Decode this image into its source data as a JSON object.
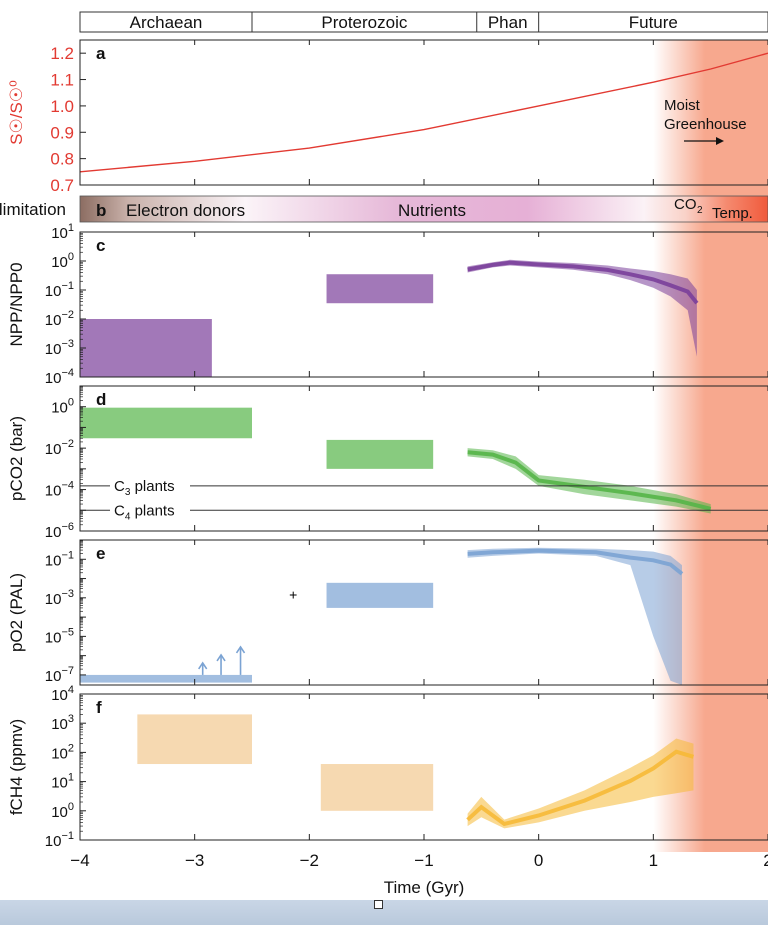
{
  "colors": {
    "background_frame": "#d8e2ee",
    "future_shading": "#f7a88e",
    "red_curve": "#e23a32",
    "purple": "#7a3f9a",
    "green": "#55b548",
    "blue": "#7ba3d3",
    "yellow": "#f6b937",
    "tan_box": "#f5d2a3"
  },
  "eon_bar": {
    "labels": [
      "Archaean",
      "Proterozoic",
      "Phan",
      "Future"
    ],
    "boundaries": [
      -4,
      -2.5,
      -0.54,
      0,
      2
    ]
  },
  "x_axis": {
    "label": "Time (Gyr)",
    "range": [
      -4,
      2
    ],
    "ticks": [
      -4,
      -3,
      -2,
      -1,
      0,
      1,
      2
    ],
    "tick_labels": [
      "−4",
      "−3",
      "−2",
      "−1",
      "0",
      "1",
      "2"
    ]
  },
  "limitation_bar": {
    "panel_letter": "b",
    "side_label": "limitation",
    "labels": [
      "Electron donors",
      "Nutrients",
      "CO2 Temp."
    ]
  },
  "annotations": {
    "moist_greenhouse": [
      "Moist",
      "Greenhouse"
    ],
    "c3_plants": "C3 plants",
    "c4_plants": "C4 plants"
  },
  "chart_data": [
    {
      "type": "line",
      "panel": "a",
      "ylabel": "S☉/S☉⁰",
      "ylim": [
        0.7,
        1.25
      ],
      "yticks": [
        "0.7",
        "0.8",
        "0.9",
        "1.0",
        "1.1",
        "1.2"
      ],
      "series": [
        {
          "x": [
            -4,
            -3,
            -2,
            -1,
            0,
            1,
            1.5,
            2
          ],
          "values": [
            0.75,
            0.79,
            0.84,
            0.91,
            1.0,
            1.09,
            1.14,
            1.2
          ]
        }
      ]
    },
    {
      "type": "area",
      "panel": "c",
      "ylabel": "NPP/NPP0",
      "log": true,
      "ylim": [
        0.0001,
        10
      ],
      "yticks": [
        "10^-4",
        "10^-3",
        "10^-2",
        "10^-1",
        "10^0",
        "10^1"
      ],
      "boxes": [
        {
          "x": [
            -4,
            -2.85
          ],
          "y": [
            0.0001,
            0.01
          ]
        },
        {
          "x": [
            -1.85,
            -0.92
          ],
          "y": [
            0.035,
            0.35
          ]
        }
      ],
      "ensemble": {
        "x": [
          -0.62,
          -0.4,
          -0.25,
          0,
          0.3,
          0.6,
          0.8,
          1.0,
          1.15,
          1.3,
          1.38
        ],
        "low": [
          0.4,
          0.6,
          0.7,
          0.6,
          0.5,
          0.35,
          0.22,
          0.12,
          0.06,
          0.02,
          0.0005
        ],
        "high": [
          0.65,
          0.9,
          1.1,
          0.95,
          0.85,
          0.7,
          0.55,
          0.45,
          0.35,
          0.25,
          0.1
        ]
      }
    },
    {
      "type": "area",
      "panel": "d",
      "ylabel": "pCO2 (bar)",
      "log": true,
      "ylim": [
        1e-06,
        10
      ],
      "yticks": [
        "10^-6",
        "10^-4",
        "10^-2",
        "10^0"
      ],
      "reference_lines": [
        {
          "label": "C3 plants",
          "y": 0.00015
        },
        {
          "label": "C4 plants",
          "y": 1e-05
        }
      ],
      "boxes": [
        {
          "x": [
            -4,
            -2.5
          ],
          "y": [
            0.03,
            0.9
          ]
        },
        {
          "x": [
            -1.85,
            -0.92
          ],
          "y": [
            0.001,
            0.025
          ]
        }
      ],
      "ensemble": {
        "x": [
          -0.62,
          -0.4,
          -0.2,
          0,
          0.4,
          0.8,
          1.2,
          1.5
        ],
        "low": [
          0.004,
          0.003,
          0.001,
          0.00015,
          6e-05,
          3e-05,
          1.5e-05,
          7e-06
        ],
        "high": [
          0.01,
          0.008,
          0.004,
          0.0005,
          0.0003,
          0.00015,
          6e-05,
          2e-05
        ]
      }
    },
    {
      "type": "area",
      "panel": "e",
      "ylabel": "pO2 (PAL)",
      "log": true,
      "ylim": [
        3e-08,
        1
      ],
      "yticks": [
        "10^-7",
        "10^-5",
        "10^-3",
        "10^-1"
      ],
      "boxes": [
        {
          "x": [
            -4,
            -2.5
          ],
          "y": [
            4e-08,
            1e-07
          ]
        },
        {
          "x": [
            -1.85,
            -0.92
          ],
          "y": [
            0.0003,
            0.006
          ]
        }
      ],
      "markers": [
        {
          "x": -2.14,
          "y": 0.0015
        }
      ],
      "arrows_x": [
        -2.93,
        -2.77,
        -2.6
      ],
      "ensemble": {
        "x": [
          -0.62,
          -0.4,
          0,
          0.5,
          0.8,
          1.0,
          1.15,
          1.25
        ],
        "low": [
          0.12,
          0.15,
          0.2,
          0.15,
          0.05,
          1e-05,
          5e-08,
          3e-08
        ],
        "high": [
          0.3,
          0.35,
          0.4,
          0.35,
          0.3,
          0.25,
          0.15,
          0.05
        ]
      }
    },
    {
      "type": "area",
      "panel": "f",
      "ylabel": "fCH4 (ppmv)",
      "log": true,
      "ylim": [
        0.1,
        10000
      ],
      "yticks": [
        "10^-1",
        "10^0",
        "10^1",
        "10^2",
        "10^3",
        "10^4"
      ],
      "boxes": [
        {
          "x": [
            -3.5,
            -2.5
          ],
          "y": [
            40,
            2000
          ]
        },
        {
          "x": [
            -1.9,
            -0.92
          ],
          "y": [
            1,
            40
          ]
        }
      ],
      "ensemble": {
        "x": [
          -0.62,
          -0.5,
          -0.3,
          0,
          0.4,
          0.8,
          1.0,
          1.2,
          1.35
        ],
        "low": [
          0.3,
          0.6,
          0.25,
          0.4,
          1,
          2,
          3,
          4,
          5
        ],
        "high": [
          0.8,
          3,
          0.5,
          1.2,
          5,
          30,
          80,
          300,
          200
        ]
      }
    }
  ]
}
